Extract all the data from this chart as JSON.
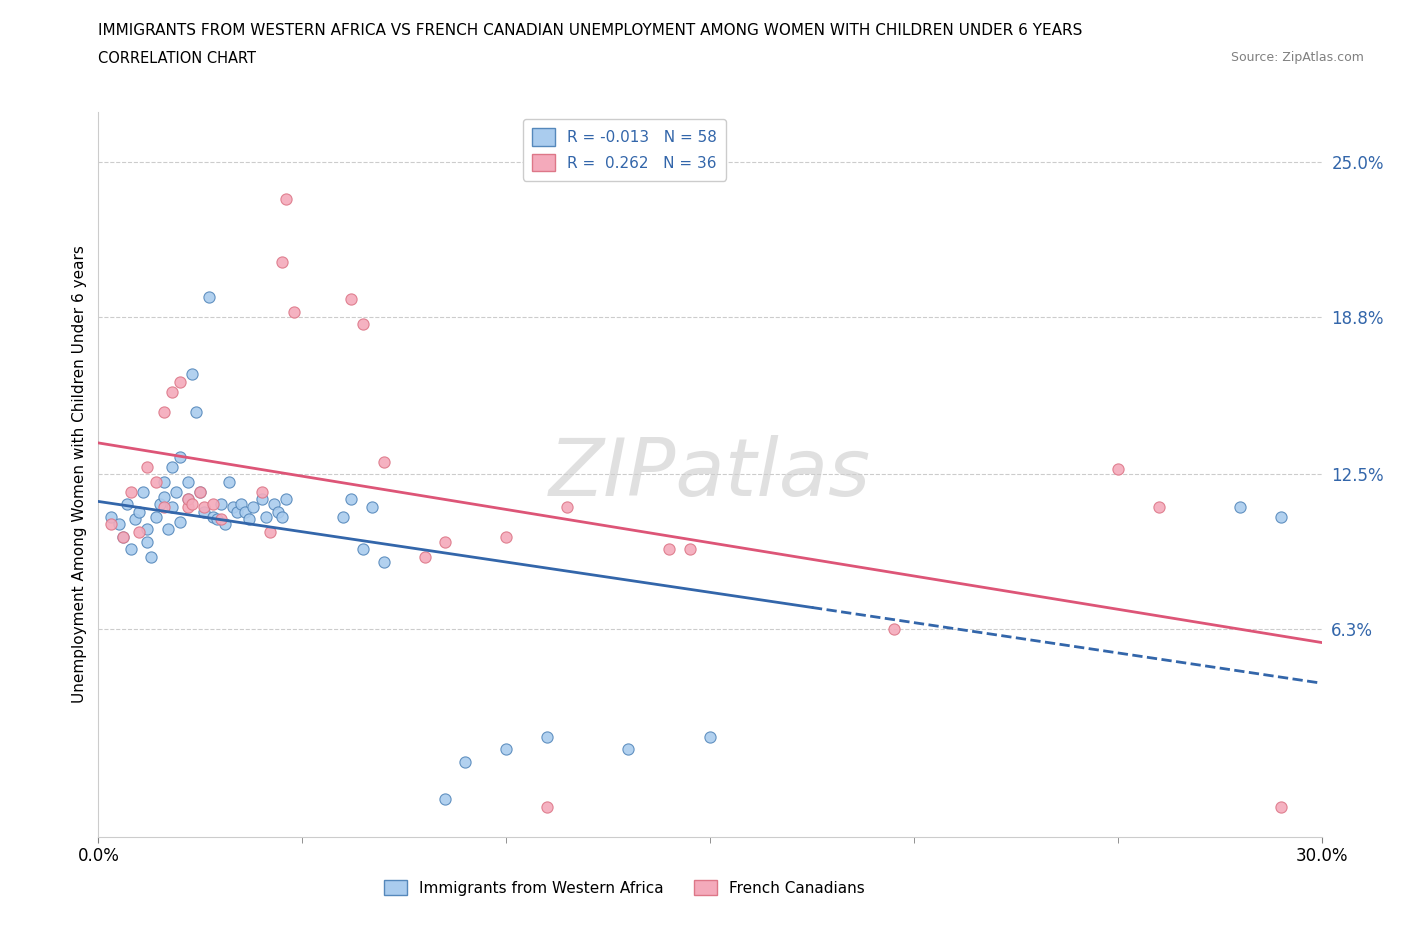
{
  "title_line1": "IMMIGRANTS FROM WESTERN AFRICA VS FRENCH CANADIAN UNEMPLOYMENT AMONG WOMEN WITH CHILDREN UNDER 6 YEARS",
  "title_line2": "CORRELATION CHART",
  "source": "Source: ZipAtlas.com",
  "ylabel": "Unemployment Among Women with Children Under 6 years",
  "xlim": [
    0.0,
    0.3
  ],
  "ylim": [
    -0.02,
    0.27
  ],
  "xticks": [
    0.0,
    0.3
  ],
  "xtick_labels": [
    "0.0%",
    "30.0%"
  ],
  "ytick_values": [
    0.063,
    0.125,
    0.188,
    0.25
  ],
  "ytick_labels": [
    "6.3%",
    "12.5%",
    "18.8%",
    "25.0%"
  ],
  "watermark": "ZIPatlas",
  "legend_r1": "R = -0.013   N = 58",
  "legend_r2": "R =  0.262   N = 36",
  "blue_fill": "#AACCEE",
  "blue_edge": "#5588BB",
  "pink_fill": "#F4AABB",
  "pink_edge": "#DD7788",
  "blue_line_color": "#3366AA",
  "pink_line_color": "#DD5577",
  "blue_scatter": [
    [
      0.003,
      0.108
    ],
    [
      0.005,
      0.105
    ],
    [
      0.006,
      0.1
    ],
    [
      0.007,
      0.113
    ],
    [
      0.008,
      0.095
    ],
    [
      0.009,
      0.107
    ],
    [
      0.01,
      0.11
    ],
    [
      0.011,
      0.118
    ],
    [
      0.012,
      0.098
    ],
    [
      0.012,
      0.103
    ],
    [
      0.013,
      0.092
    ],
    [
      0.014,
      0.108
    ],
    [
      0.015,
      0.113
    ],
    [
      0.016,
      0.122
    ],
    [
      0.016,
      0.116
    ],
    [
      0.017,
      0.103
    ],
    [
      0.018,
      0.128
    ],
    [
      0.018,
      0.112
    ],
    [
      0.019,
      0.118
    ],
    [
      0.02,
      0.132
    ],
    [
      0.02,
      0.106
    ],
    [
      0.022,
      0.122
    ],
    [
      0.022,
      0.115
    ],
    [
      0.023,
      0.165
    ],
    [
      0.024,
      0.15
    ],
    [
      0.025,
      0.118
    ],
    [
      0.026,
      0.11
    ],
    [
      0.027,
      0.196
    ],
    [
      0.028,
      0.108
    ],
    [
      0.029,
      0.107
    ],
    [
      0.03,
      0.113
    ],
    [
      0.031,
      0.105
    ],
    [
      0.032,
      0.122
    ],
    [
      0.033,
      0.112
    ],
    [
      0.034,
      0.11
    ],
    [
      0.035,
      0.113
    ],
    [
      0.036,
      0.11
    ],
    [
      0.037,
      0.107
    ],
    [
      0.038,
      0.112
    ],
    [
      0.04,
      0.115
    ],
    [
      0.041,
      0.108
    ],
    [
      0.043,
      0.113
    ],
    [
      0.044,
      0.11
    ],
    [
      0.045,
      0.108
    ],
    [
      0.046,
      0.115
    ],
    [
      0.06,
      0.108
    ],
    [
      0.062,
      0.115
    ],
    [
      0.065,
      0.095
    ],
    [
      0.067,
      0.112
    ],
    [
      0.07,
      0.09
    ],
    [
      0.085,
      -0.005
    ],
    [
      0.09,
      0.01
    ],
    [
      0.1,
      0.015
    ],
    [
      0.11,
      0.02
    ],
    [
      0.13,
      0.015
    ],
    [
      0.15,
      0.02
    ],
    [
      0.28,
      0.112
    ],
    [
      0.29,
      0.108
    ]
  ],
  "pink_scatter": [
    [
      0.003,
      0.105
    ],
    [
      0.006,
      0.1
    ],
    [
      0.008,
      0.118
    ],
    [
      0.01,
      0.102
    ],
    [
      0.012,
      0.128
    ],
    [
      0.014,
      0.122
    ],
    [
      0.016,
      0.112
    ],
    [
      0.016,
      0.15
    ],
    [
      0.018,
      0.158
    ],
    [
      0.02,
      0.162
    ],
    [
      0.022,
      0.112
    ],
    [
      0.022,
      0.115
    ],
    [
      0.023,
      0.113
    ],
    [
      0.025,
      0.118
    ],
    [
      0.026,
      0.112
    ],
    [
      0.028,
      0.113
    ],
    [
      0.03,
      0.107
    ],
    [
      0.04,
      0.118
    ],
    [
      0.042,
      0.102
    ],
    [
      0.045,
      0.21
    ],
    [
      0.046,
      0.235
    ],
    [
      0.048,
      0.19
    ],
    [
      0.062,
      0.195
    ],
    [
      0.065,
      0.185
    ],
    [
      0.07,
      0.13
    ],
    [
      0.08,
      0.092
    ],
    [
      0.085,
      0.098
    ],
    [
      0.1,
      0.1
    ],
    [
      0.11,
      -0.008
    ],
    [
      0.115,
      0.112
    ],
    [
      0.14,
      0.095
    ],
    [
      0.145,
      0.095
    ],
    [
      0.195,
      0.063
    ],
    [
      0.25,
      0.127
    ],
    [
      0.26,
      0.112
    ],
    [
      0.29,
      -0.008
    ]
  ],
  "blue_line_x": [
    0.0,
    0.175,
    0.3
  ],
  "blue_line_y_solid_end": 0.175,
  "pink_line_x0": 0.0,
  "pink_line_x1": 0.3
}
